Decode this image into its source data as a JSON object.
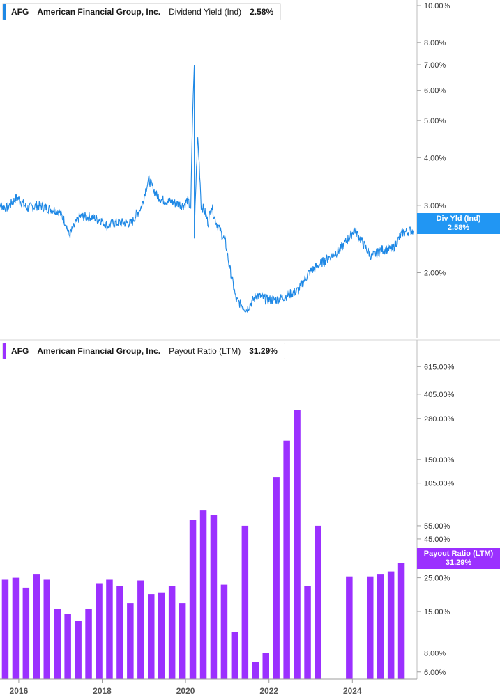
{
  "colors": {
    "yield_line": "#1e88e5",
    "payout_bars": "#9b30ff",
    "yield_tag": "#2196f3",
    "payout_tag": "#9b30ff",
    "axis": "#9e9e9e",
    "grid_text": "#333333"
  },
  "top_panel": {
    "legend": {
      "ticker": "AFG",
      "company": "American Financial Group, Inc.",
      "metric": "Dividend Yield (Ind)",
      "value": "2.58%"
    },
    "tag": {
      "label": "Div Yld (Ind)",
      "value": "2.58%"
    }
  },
  "bottom_panel": {
    "legend": {
      "ticker": "AFG",
      "company": "American Financial Group, Inc.",
      "metric": "Payout Ratio (LTM)",
      "value": "31.29%"
    },
    "tag": {
      "label": "Payout Ratio (LTM)",
      "value": "31.29%"
    }
  },
  "chart_data": [
    {
      "type": "line",
      "title": "AFG American Financial Group, Inc. Dividend Yield (Ind) 2.58%",
      "scale": "log",
      "x_range": [
        "2015-06",
        "2025-07"
      ],
      "ylim": [
        1.5,
        10.0
      ],
      "y_ticks": [
        "10.00%",
        "8.00%",
        "7.00%",
        "6.00%",
        "5.00%",
        "4.00%",
        "3.00%",
        "2.00%"
      ],
      "y_tick_values": [
        10,
        8,
        7,
        6,
        5,
        4,
        3,
        2
      ],
      "series": [
        {
          "x": [
            "2015-06",
            "2015-09",
            "2015-12",
            "2016-03",
            "2016-06",
            "2016-09",
            "2016-12",
            "2017-02",
            "2017-03",
            "2017-06",
            "2017-09",
            "2017-12",
            "2018-02",
            "2018-04",
            "2018-06",
            "2018-09",
            "2018-12",
            "2019-01",
            "2019-02",
            "2019-04",
            "2019-06",
            "2019-09",
            "2019-12",
            "2020-01",
            "2020-02",
            "2020-03",
            "2020-03",
            "2020-04",
            "2020-05",
            "2020-06",
            "2020-07",
            "2020-08",
            "2020-09",
            "2020-12",
            "2021-01",
            "2021-03",
            "2021-06",
            "2021-09",
            "2021-12",
            "2022-03",
            "2022-06",
            "2022-09",
            "2022-12",
            "2023-03",
            "2023-06",
            "2023-09",
            "2023-12",
            "2024-01",
            "2024-04",
            "2024-06",
            "2024-09",
            "2024-12",
            "2025-03",
            "2025-06"
          ],
          "values": [
            3.05,
            2.95,
            3.15,
            2.95,
            3.0,
            2.95,
            2.9,
            2.7,
            2.5,
            2.8,
            2.8,
            2.75,
            2.65,
            2.7,
            2.7,
            2.7,
            3.0,
            3.3,
            3.5,
            3.2,
            3.1,
            3.05,
            3.0,
            3.1,
            2.95,
            7.0,
            2.4,
            4.5,
            3.0,
            2.9,
            2.7,
            3.0,
            2.75,
            2.4,
            2.1,
            1.7,
            1.6,
            1.75,
            1.7,
            1.7,
            1.75,
            1.8,
            2.0,
            2.1,
            2.2,
            2.3,
            2.5,
            2.6,
            2.35,
            2.2,
            2.3,
            2.3,
            2.55,
            2.58
          ]
        }
      ]
    },
    {
      "type": "bar",
      "title": "AFG American Financial Group, Inc. Payout Ratio (LTM) 31.29%",
      "scale": "log",
      "ylim": [
        5.5,
        700
      ],
      "y_ticks": [
        "615.00%",
        "405.00%",
        "280.00%",
        "150.00%",
        "105.00%",
        "55.00%",
        "45.00%",
        "25.00%",
        "15.00%",
        "8.00%",
        "6.00%"
      ],
      "y_tick_values": [
        615,
        405,
        280,
        150,
        105,
        55,
        45,
        25,
        15,
        8,
        6
      ],
      "x_ticks": [
        "2016",
        "2018",
        "2020",
        "2022",
        "2024"
      ],
      "categories": [
        "2015Q3",
        "2015Q4",
        "2016Q1",
        "2016Q2",
        "2016Q3",
        "2016Q4",
        "2017Q1",
        "2017Q2",
        "2017Q3",
        "2017Q4",
        "2018Q1",
        "2018Q2",
        "2018Q3",
        "2018Q4",
        "2019Q1",
        "2019Q2",
        "2019Q3",
        "2019Q4",
        "2020Q1",
        "2020Q2",
        "2020Q3",
        "2020Q4",
        "2021Q1",
        "2021Q2",
        "2021Q3",
        "2021Q4",
        "2022Q1",
        "2022Q2",
        "2022Q3",
        "2022Q4",
        "2023Q1",
        "2023Q2",
        "2023Q3",
        "2023Q4",
        "2024Q1",
        "2024Q2",
        "2024Q3",
        "2024Q4",
        "2025Q1",
        "2025Q2"
      ],
      "series": [
        {
          "name": "Payout Ratio (LTM)",
          "values": [
            21.5,
            24.5,
            25.0,
            21.5,
            26.5,
            24.5,
            15.5,
            14.5,
            13.0,
            15.5,
            23.0,
            24.5,
            22.0,
            17.0,
            24.0,
            19.5,
            20.0,
            22.0,
            17.0,
            60.0,
            70.0,
            65.0,
            22.5,
            11.0,
            55.0,
            7.0,
            8.0,
            115.0,
            200.0,
            320.0,
            22.0,
            55.0,
            null,
            null,
            25.5,
            null,
            25.5,
            26.5,
            27.5,
            31.29
          ]
        }
      ]
    }
  ]
}
